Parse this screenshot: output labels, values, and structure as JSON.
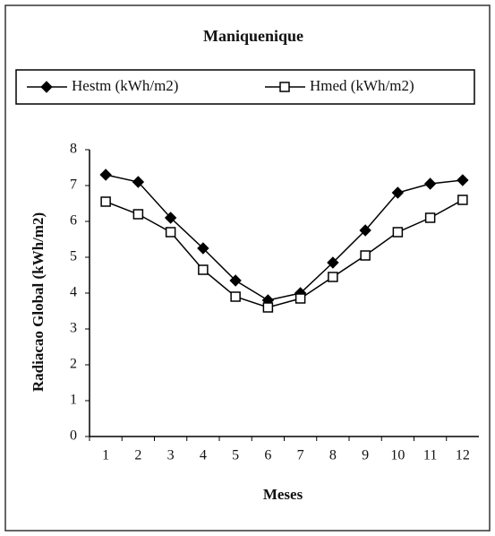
{
  "chart_data": {
    "type": "line",
    "title": "Maniquenique",
    "x_label": "Meses",
    "y_label": "Radiacao Global (kWh/m2)",
    "categories": [
      "1",
      "2",
      "3",
      "4",
      "5",
      "6",
      "7",
      "8",
      "9",
      "10",
      "11",
      "12"
    ],
    "series": [
      {
        "name": "Hestm (kWh/m2)",
        "color": "#000000",
        "marker": "diamond",
        "values": [
          7.3,
          7.1,
          6.1,
          5.25,
          4.35,
          3.8,
          4.0,
          4.85,
          5.75,
          6.8,
          7.05,
          7.15
        ]
      },
      {
        "name": "Hmed (kWh/m2)",
        "color": "#000000",
        "marker": "square",
        "values": [
          6.55,
          6.2,
          5.7,
          4.65,
          3.9,
          3.6,
          3.85,
          4.45,
          5.05,
          5.7,
          6.1,
          6.6
        ]
      }
    ],
    "ylim": [
      0,
      8
    ],
    "yticks": [
      0,
      1,
      2,
      3,
      4,
      5,
      6,
      7,
      8
    ],
    "grid": false
  }
}
